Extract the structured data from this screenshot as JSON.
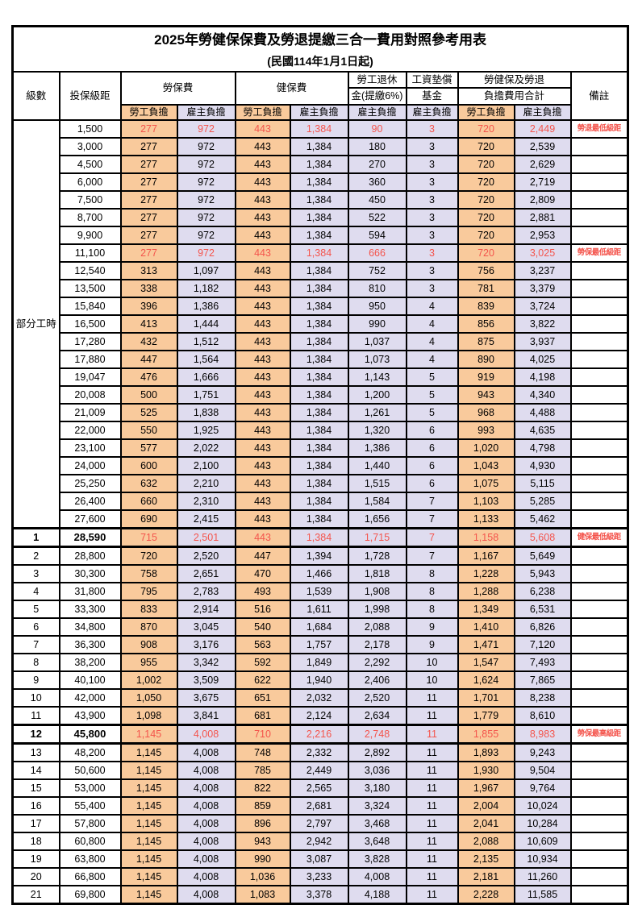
{
  "title": "2025年勞健保保費及勞退提繳三合一費用對照參考用表",
  "subtitle": "(民國114年1月1日起)",
  "colors": {
    "orange": "#F9CA9C",
    "lavender": "#DFDCEF",
    "red": "#F4544C",
    "border": "#000000"
  },
  "header": {
    "level": "級數",
    "bracket": "投保級距",
    "labor_fee": "勞保費",
    "health_fee": "健保費",
    "pension_line1": "勞工退休",
    "pension_line2": "金(提繳6%)",
    "wage_fund_line1": "工資墊償",
    "wage_fund_line2": "基金",
    "total_line1": "勞健保及勞退",
    "total_line2": "負擔費用合計",
    "remark": "備註",
    "employee": "勞工負擔",
    "employer": "雇主負擔"
  },
  "part_time_label": "部分工時",
  "rows": [
    {
      "level": "部分工時",
      "level_rowspan": 23,
      "bracket": "1,500",
      "values": [
        "277",
        "972",
        "443",
        "1,384",
        "90",
        "3",
        "720",
        "2,449"
      ],
      "remark": "勞退最低級距",
      "highlight": true
    },
    {
      "bracket": "3,000",
      "values": [
        "277",
        "972",
        "443",
        "1,384",
        "180",
        "3",
        "720",
        "2,539"
      ],
      "remark": ""
    },
    {
      "bracket": "4,500",
      "values": [
        "277",
        "972",
        "443",
        "1,384",
        "270",
        "3",
        "720",
        "2,629"
      ],
      "remark": ""
    },
    {
      "bracket": "6,000",
      "values": [
        "277",
        "972",
        "443",
        "1,384",
        "360",
        "3",
        "720",
        "2,719"
      ],
      "remark": ""
    },
    {
      "bracket": "7,500",
      "values": [
        "277",
        "972",
        "443",
        "1,384",
        "450",
        "3",
        "720",
        "2,809"
      ],
      "remark": ""
    },
    {
      "bracket": "8,700",
      "values": [
        "277",
        "972",
        "443",
        "1,384",
        "522",
        "3",
        "720",
        "2,881"
      ],
      "remark": ""
    },
    {
      "bracket": "9,900",
      "values": [
        "277",
        "972",
        "443",
        "1,384",
        "594",
        "3",
        "720",
        "2,953"
      ],
      "remark": ""
    },
    {
      "bracket": "11,100",
      "values": [
        "277",
        "972",
        "443",
        "1,384",
        "666",
        "3",
        "720",
        "3,025"
      ],
      "remark": "勞保最低級距",
      "highlight": true
    },
    {
      "bracket": "12,540",
      "values": [
        "313",
        "1,097",
        "443",
        "1,384",
        "752",
        "3",
        "756",
        "3,237"
      ],
      "remark": ""
    },
    {
      "bracket": "13,500",
      "values": [
        "338",
        "1,182",
        "443",
        "1,384",
        "810",
        "3",
        "781",
        "3,379"
      ],
      "remark": ""
    },
    {
      "bracket": "15,840",
      "values": [
        "396",
        "1,386",
        "443",
        "1,384",
        "950",
        "4",
        "839",
        "3,724"
      ],
      "remark": ""
    },
    {
      "bracket": "16,500",
      "values": [
        "413",
        "1,444",
        "443",
        "1,384",
        "990",
        "4",
        "856",
        "3,822"
      ],
      "remark": ""
    },
    {
      "bracket": "17,280",
      "values": [
        "432",
        "1,512",
        "443",
        "1,384",
        "1,037",
        "4",
        "875",
        "3,937"
      ],
      "remark": ""
    },
    {
      "bracket": "17,880",
      "values": [
        "447",
        "1,564",
        "443",
        "1,384",
        "1,073",
        "4",
        "890",
        "4,025"
      ],
      "remark": ""
    },
    {
      "bracket": "19,047",
      "values": [
        "476",
        "1,666",
        "443",
        "1,384",
        "1,143",
        "5",
        "919",
        "4,198"
      ],
      "remark": ""
    },
    {
      "bracket": "20,008",
      "values": [
        "500",
        "1,751",
        "443",
        "1,384",
        "1,200",
        "5",
        "943",
        "4,340"
      ],
      "remark": ""
    },
    {
      "bracket": "21,009",
      "values": [
        "525",
        "1,838",
        "443",
        "1,384",
        "1,261",
        "5",
        "968",
        "4,488"
      ],
      "remark": ""
    },
    {
      "bracket": "22,000",
      "values": [
        "550",
        "1,925",
        "443",
        "1,384",
        "1,320",
        "6",
        "993",
        "4,635"
      ],
      "remark": ""
    },
    {
      "bracket": "23,100",
      "values": [
        "577",
        "2,022",
        "443",
        "1,384",
        "1,386",
        "6",
        "1,020",
        "4,798"
      ],
      "remark": ""
    },
    {
      "bracket": "24,000",
      "values": [
        "600",
        "2,100",
        "443",
        "1,384",
        "1,440",
        "6",
        "1,043",
        "4,930"
      ],
      "remark": ""
    },
    {
      "bracket": "25,250",
      "values": [
        "632",
        "2,210",
        "443",
        "1,384",
        "1,515",
        "6",
        "1,075",
        "5,115"
      ],
      "remark": ""
    },
    {
      "bracket": "26,400",
      "values": [
        "660",
        "2,310",
        "443",
        "1,384",
        "1,584",
        "7",
        "1,103",
        "5,285"
      ],
      "remark": ""
    },
    {
      "bracket": "27,600",
      "values": [
        "690",
        "2,415",
        "443",
        "1,384",
        "1,656",
        "7",
        "1,133",
        "5,462"
      ],
      "remark": ""
    },
    {
      "level": "1",
      "bracket": "28,590",
      "values": [
        "715",
        "2,501",
        "443",
        "1,384",
        "1,715",
        "7",
        "1,158",
        "5,608"
      ],
      "remark": "健保最低級距",
      "highlight": true,
      "thick": true,
      "bold": true
    },
    {
      "level": "2",
      "bracket": "28,800",
      "values": [
        "720",
        "2,520",
        "447",
        "1,394",
        "1,728",
        "7",
        "1,167",
        "5,649"
      ],
      "remark": ""
    },
    {
      "level": "3",
      "bracket": "30,300",
      "values": [
        "758",
        "2,651",
        "470",
        "1,466",
        "1,818",
        "8",
        "1,228",
        "5,943"
      ],
      "remark": ""
    },
    {
      "level": "4",
      "bracket": "31,800",
      "values": [
        "795",
        "2,783",
        "493",
        "1,539",
        "1,908",
        "8",
        "1,288",
        "6,238"
      ],
      "remark": ""
    },
    {
      "level": "5",
      "bracket": "33,300",
      "values": [
        "833",
        "2,914",
        "516",
        "1,611",
        "1,998",
        "8",
        "1,349",
        "6,531"
      ],
      "remark": ""
    },
    {
      "level": "6",
      "bracket": "34,800",
      "values": [
        "870",
        "3,045",
        "540",
        "1,684",
        "2,088",
        "9",
        "1,410",
        "6,826"
      ],
      "remark": ""
    },
    {
      "level": "7",
      "bracket": "36,300",
      "values": [
        "908",
        "3,176",
        "563",
        "1,757",
        "2,178",
        "9",
        "1,471",
        "7,120"
      ],
      "remark": ""
    },
    {
      "level": "8",
      "bracket": "38,200",
      "values": [
        "955",
        "3,342",
        "592",
        "1,849",
        "2,292",
        "10",
        "1,547",
        "7,493"
      ],
      "remark": ""
    },
    {
      "level": "9",
      "bracket": "40,100",
      "values": [
        "1,002",
        "3,509",
        "622",
        "1,940",
        "2,406",
        "10",
        "1,624",
        "7,865"
      ],
      "remark": ""
    },
    {
      "level": "10",
      "bracket": "42,000",
      "values": [
        "1,050",
        "3,675",
        "651",
        "2,032",
        "2,520",
        "11",
        "1,701",
        "8,238"
      ],
      "remark": ""
    },
    {
      "level": "11",
      "bracket": "43,900",
      "values": [
        "1,098",
        "3,841",
        "681",
        "2,124",
        "2,634",
        "11",
        "1,779",
        "8,610"
      ],
      "remark": ""
    },
    {
      "level": "12",
      "bracket": "45,800",
      "values": [
        "1,145",
        "4,008",
        "710",
        "2,216",
        "2,748",
        "11",
        "1,855",
        "8,983"
      ],
      "remark": "勞保最高級距",
      "highlight": true,
      "thick": true,
      "bold": true
    },
    {
      "level": "13",
      "bracket": "48,200",
      "values": [
        "1,145",
        "4,008",
        "748",
        "2,332",
        "2,892",
        "11",
        "1,893",
        "9,243"
      ],
      "remark": ""
    },
    {
      "level": "14",
      "bracket": "50,600",
      "values": [
        "1,145",
        "4,008",
        "785",
        "2,449",
        "3,036",
        "11",
        "1,930",
        "9,504"
      ],
      "remark": ""
    },
    {
      "level": "15",
      "bracket": "53,000",
      "values": [
        "1,145",
        "4,008",
        "822",
        "2,565",
        "3,180",
        "11",
        "1,967",
        "9,764"
      ],
      "remark": ""
    },
    {
      "level": "16",
      "bracket": "55,400",
      "values": [
        "1,145",
        "4,008",
        "859",
        "2,681",
        "3,324",
        "11",
        "2,004",
        "10,024"
      ],
      "remark": ""
    },
    {
      "level": "17",
      "bracket": "57,800",
      "values": [
        "1,145",
        "4,008",
        "896",
        "2,797",
        "3,468",
        "11",
        "2,041",
        "10,284"
      ],
      "remark": ""
    },
    {
      "level": "18",
      "bracket": "60,800",
      "values": [
        "1,145",
        "4,008",
        "943",
        "2,942",
        "3,648",
        "11",
        "2,088",
        "10,609"
      ],
      "remark": ""
    },
    {
      "level": "19",
      "bracket": "63,800",
      "values": [
        "1,145",
        "4,008",
        "990",
        "3,087",
        "3,828",
        "11",
        "2,135",
        "10,934"
      ],
      "remark": ""
    },
    {
      "level": "20",
      "bracket": "66,800",
      "values": [
        "1,145",
        "4,008",
        "1,036",
        "3,233",
        "4,008",
        "11",
        "2,181",
        "11,260"
      ],
      "remark": ""
    },
    {
      "level": "21",
      "bracket": "69,800",
      "values": [
        "1,145",
        "4,008",
        "1,083",
        "3,378",
        "4,188",
        "11",
        "2,228",
        "11,585"
      ],
      "remark": ""
    }
  ]
}
